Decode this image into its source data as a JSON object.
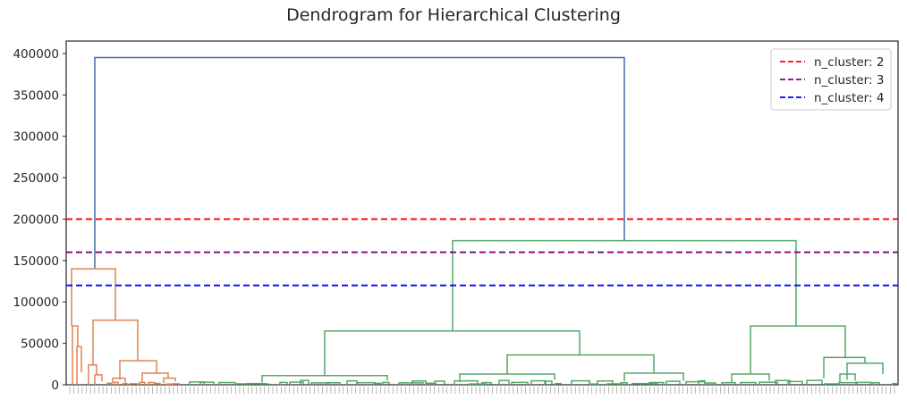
{
  "chart_data": {
    "type": "dendrogram",
    "title": "Dendrogram for Hierarchical Clustering",
    "xlabel": "",
    "ylabel": "",
    "ylim": [
      0,
      415000
    ],
    "yticks": [
      0,
      50000,
      100000,
      150000,
      200000,
      250000,
      300000,
      350000,
      400000
    ],
    "ytick_labels": [
      "0",
      "50000",
      "100000",
      "150000",
      "200000",
      "250000",
      "300000",
      "350000",
      "400000"
    ],
    "grid": false,
    "legend_position": "top-right",
    "thresholds": [
      {
        "name": "n_cluster: 2",
        "value": 200000,
        "color": "#ff0000"
      },
      {
        "name": "n_cluster: 3",
        "value": 160000,
        "color": "#800080"
      },
      {
        "name": "n_cluster: 4",
        "value": 120000,
        "color": "#0000ff"
      }
    ],
    "link_colors": {
      "root": "#3f6ea8",
      "cluster_1": "#dd8452",
      "cluster_2": "#55a868"
    },
    "leaf_count": 200,
    "merges": [
      {
        "left": 0,
        "right": 1,
        "height": 395000,
        "color": "root"
      },
      {
        "left": 0,
        "right": 1,
        "height": 174000,
        "color": "cluster_2"
      },
      {
        "left": 0,
        "right": 1,
        "height": 140000,
        "color": "cluster_1"
      },
      {
        "left": 0,
        "right": 1,
        "height": 78000,
        "color": "cluster_1"
      },
      {
        "left": 0,
        "right": 1,
        "height": 71000,
        "color": "cluster_2"
      },
      {
        "left": 0,
        "right": 1,
        "height": 65000,
        "color": "cluster_2"
      },
      {
        "left": 0,
        "right": 1,
        "height": 36000,
        "color": "cluster_2"
      },
      {
        "left": 0,
        "right": 1,
        "height": 33000,
        "color": "cluster_2"
      },
      {
        "left": 0,
        "right": 1,
        "height": 29000,
        "color": "cluster_1"
      }
    ]
  }
}
